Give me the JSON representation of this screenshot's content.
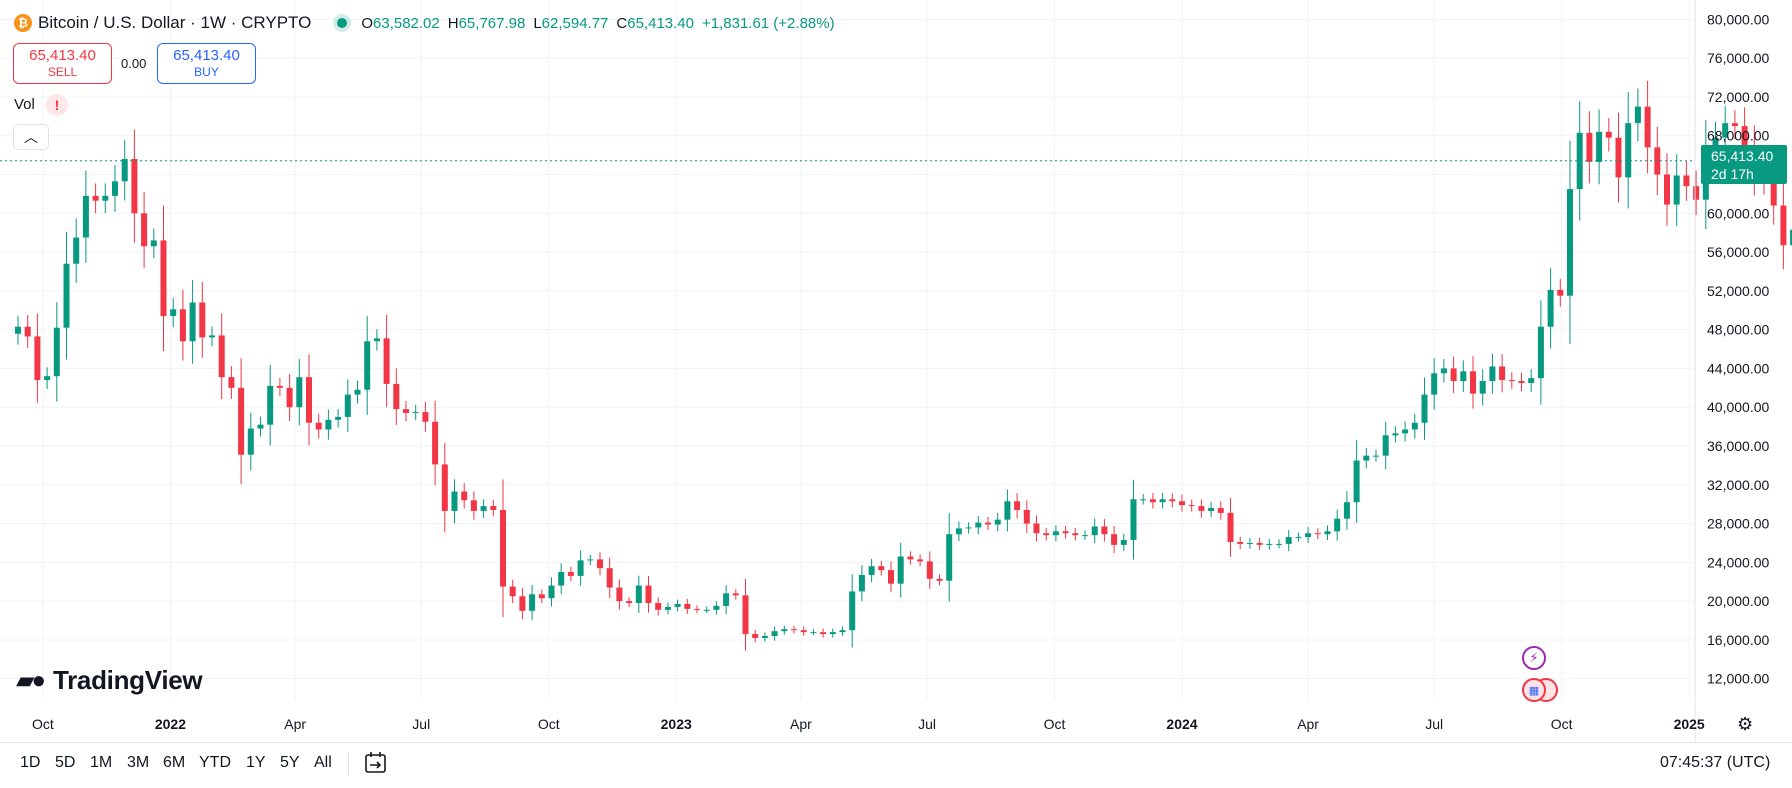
{
  "header": {
    "symbol": "Bitcoin",
    "quote": "U.S. Dollar",
    "interval": "1W",
    "exchange": "CRYPTO",
    "ohlc": [
      {
        "key": "O",
        "value": "63,582.02"
      },
      {
        "key": "H",
        "value": "65,767.98"
      },
      {
        "key": "L",
        "value": "62,594.77"
      },
      {
        "key": "C",
        "value": "65,413.40"
      }
    ],
    "change": "+1,831.61 (+2.88%)"
  },
  "trade": {
    "sell_price": "65,413.40",
    "sell_label": "SELL",
    "spread": "0.00",
    "buy_price": "65,413.40",
    "buy_label": "BUY"
  },
  "indicators": {
    "vol_label": "Vol",
    "warning": "!"
  },
  "price_label": {
    "price": "65,413.40",
    "countdown": "2d 17h"
  },
  "logo": "TradingView",
  "time_ranges": [
    "1D",
    "5D",
    "1M",
    "3M",
    "6M",
    "YTD",
    "1Y",
    "5Y",
    "All"
  ],
  "clock": "07:45:37 (UTC)",
  "colors": {
    "up": "#089981",
    "down": "#f23645",
    "grid": "#f0f3fa",
    "last_line": "#089981"
  },
  "chart_data": {
    "type": "candlestick",
    "interval": "1W",
    "x_start": "2021-09-13",
    "ylim": [
      9800,
      82000
    ],
    "last_price": 65413.4,
    "y_ticks": [
      12000,
      16000,
      20000,
      24000,
      28000,
      32000,
      36000,
      40000,
      44000,
      48000,
      52000,
      56000,
      60000,
      64000,
      68000,
      72000,
      76000,
      80000
    ],
    "y_tick_labels": [
      "12,000.00",
      "16,000.00",
      "20,000.00",
      "24,000.00",
      "28,000.00",
      "32,000.00",
      "36,000.00",
      "40,000.00",
      "44,000.00",
      "48,000.00",
      "52,000.00",
      "56,000.00",
      "60,000.00",
      "64,000.00",
      "68,000.00",
      "72,000.00",
      "76,000.00",
      "80,000.00"
    ],
    "x_ticks": [
      {
        "date": "2021-10-01",
        "label": "Oct",
        "bold": false
      },
      {
        "date": "2022-01-01",
        "label": "2022",
        "bold": true
      },
      {
        "date": "2022-04-01",
        "label": "Apr",
        "bold": false
      },
      {
        "date": "2022-07-01",
        "label": "Jul",
        "bold": false
      },
      {
        "date": "2022-10-01",
        "label": "Oct",
        "bold": false
      },
      {
        "date": "2023-01-01",
        "label": "2023",
        "bold": true
      },
      {
        "date": "2023-04-01",
        "label": "Apr",
        "bold": false
      },
      {
        "date": "2023-07-01",
        "label": "Jul",
        "bold": false
      },
      {
        "date": "2023-10-01",
        "label": "Oct",
        "bold": false
      },
      {
        "date": "2024-01-01",
        "label": "2024",
        "bold": true
      },
      {
        "date": "2024-04-01",
        "label": "Apr",
        "bold": false
      },
      {
        "date": "2024-07-01",
        "label": "Jul",
        "bold": false
      },
      {
        "date": "2024-10-01",
        "label": "Oct",
        "bold": false
      },
      {
        "date": "2025-01-01",
        "label": "2025",
        "bold": true
      }
    ],
    "closes": [
      48300,
      47300,
      42800,
      43200,
      48200,
      54800,
      57500,
      61800,
      61300,
      61800,
      63300,
      65600,
      60000,
      56600,
      57200,
      49400,
      50100,
      46800,
      50800,
      47200,
      47400,
      43100,
      42000,
      35100,
      37800,
      38200,
      42200,
      42000,
      40000,
      43100,
      38400,
      37700,
      38700,
      39000,
      41300,
      41800,
      46800,
      47100,
      42400,
      39800,
      39400,
      39500,
      38500,
      34100,
      29300,
      31300,
      30400,
      29300,
      29800,
      29400,
      21500,
      20500,
      19000,
      20700,
      20300,
      21600,
      23000,
      22600,
      24200,
      24300,
      23400,
      21400,
      20000,
      19800,
      21600,
      19800,
      19100,
      19400,
      19700,
      19200,
      19100,
      19100,
      19500,
      20800,
      20600,
      16600,
      16200,
      16400,
      16900,
      17100,
      17000,
      16800,
      16800,
      16600,
      16800,
      17000,
      21000,
      22700,
      23600,
      23200,
      21800,
      24600,
      24300,
      24100,
      22300,
      22100,
      26900,
      27500,
      27600,
      28100,
      27900,
      28400,
      30300,
      29400,
      28000,
      27000,
      26800,
      27200,
      27000,
      26800,
      26800,
      27700,
      26900,
      25800,
      26300,
      30500,
      30500,
      30200,
      30500,
      30300,
      29900,
      29800,
      29300,
      29600,
      29100,
      26100,
      25900,
      26000,
      25800,
      25900,
      25900,
      26600,
      26600,
      27000,
      26900,
      27200,
      28500,
      30200,
      34500,
      35000,
      35000,
      37100,
      37300,
      37700,
      38400,
      41300,
      43500,
      44000,
      42700,
      43700,
      41400,
      42700,
      44200,
      42800,
      42700,
      42500,
      43000,
      48300,
      52100,
      51500,
      62500,
      68300,
      65300,
      68400,
      67800,
      63700,
      69300,
      71000,
      66800,
      64000,
      60900,
      63900,
      62800,
      61400,
      66600,
      67800,
      69300,
      69000,
      66900,
      64000,
      63300,
      60800,
      56700,
      58300,
      62800,
      66500,
      68900,
      57700,
      58700,
      58900,
      59000,
      64000,
      59100,
      54900,
      60300,
      63600,
      65413
    ]
  }
}
